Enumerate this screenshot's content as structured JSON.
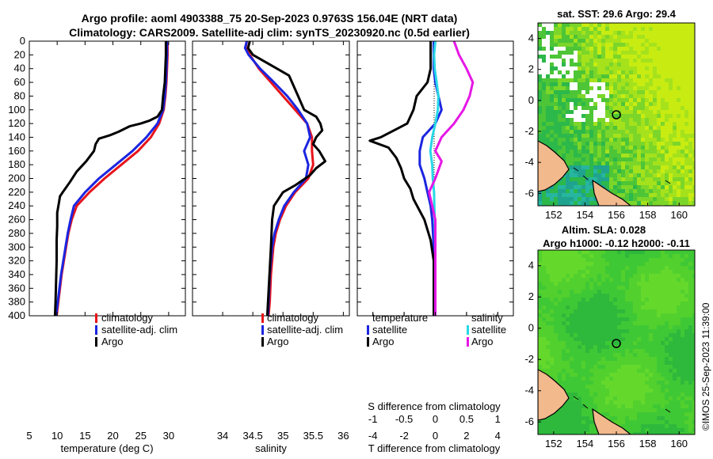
{
  "title": {
    "line1": "Argo profile: aoml 4903388_75 20-Sep-2023 0.9763S 156.04E (NRT data)",
    "line2": "Climatology: CARS2009. Satellite-adj clim: synTS_20230920.nc (0.5d earlier)"
  },
  "colors": {
    "climatology": "#e8141b",
    "satellite": "#1b25e0",
    "argo": "#000000",
    "sat_salinity": "#27d8e6",
    "argo_salinity": "#e617e6"
  },
  "chart_data": [
    {
      "type": "line",
      "id": "temperature",
      "xlabel": "temperature (deg C)",
      "ylabel": "depth",
      "xlim": [
        5,
        33
      ],
      "ylim": [
        400,
        0
      ],
      "xticks": [
        5,
        10,
        15,
        20,
        25,
        30
      ],
      "yticks": [
        0,
        20,
        40,
        60,
        80,
        100,
        120,
        140,
        160,
        180,
        200,
        220,
        240,
        260,
        280,
        300,
        320,
        340,
        360,
        380,
        400
      ],
      "legend": {
        "position": "lower-right",
        "entries": [
          "climatology",
          "satellite-adj. clim",
          "Argo"
        ]
      },
      "series": [
        {
          "name": "climatology",
          "key": "climatology",
          "points": [
            [
              29.8,
              0
            ],
            [
              29.8,
              20
            ],
            [
              29.7,
              40
            ],
            [
              29.6,
              60
            ],
            [
              29.4,
              80
            ],
            [
              29.1,
              100
            ],
            [
              28.3,
              120
            ],
            [
              26.8,
              140
            ],
            [
              24.5,
              160
            ],
            [
              21.5,
              180
            ],
            [
              18.5,
              200
            ],
            [
              15.8,
              220
            ],
            [
              13.5,
              240
            ],
            [
              12.6,
              260
            ],
            [
              12.0,
              280
            ],
            [
              11.6,
              300
            ],
            [
              11.2,
              320
            ],
            [
              10.8,
              340
            ],
            [
              10.5,
              360
            ],
            [
              10.2,
              380
            ],
            [
              9.9,
              400
            ]
          ]
        },
        {
          "name": "satellite-adj. clim",
          "key": "satellite",
          "points": [
            [
              29.7,
              0
            ],
            [
              29.7,
              20
            ],
            [
              29.6,
              40
            ],
            [
              29.5,
              60
            ],
            [
              29.3,
              80
            ],
            [
              29.0,
              100
            ],
            [
              28.0,
              120
            ],
            [
              26.0,
              140
            ],
            [
              23.5,
              160
            ],
            [
              20.5,
              180
            ],
            [
              17.5,
              200
            ],
            [
              15.0,
              220
            ],
            [
              13.0,
              240
            ],
            [
              12.4,
              260
            ],
            [
              11.9,
              280
            ],
            [
              11.5,
              300
            ],
            [
              11.1,
              320
            ],
            [
              10.7,
              340
            ],
            [
              10.4,
              360
            ],
            [
              10.1,
              380
            ],
            [
              9.8,
              400
            ]
          ]
        },
        {
          "name": "Argo",
          "key": "argo",
          "points": [
            [
              29.5,
              0
            ],
            [
              29.5,
              20
            ],
            [
              29.4,
              40
            ],
            [
              29.3,
              60
            ],
            [
              29.0,
              80
            ],
            [
              28.8,
              100
            ],
            [
              28.0,
              110
            ],
            [
              26.5,
              116
            ],
            [
              25.0,
              120
            ],
            [
              23.0,
              124
            ],
            [
              21.0,
              132
            ],
            [
              19.5,
              137
            ],
            [
              17.5,
              142
            ],
            [
              16.9,
              150
            ],
            [
              16.6,
              160
            ],
            [
              15.2,
              175
            ],
            [
              13.5,
              190
            ],
            [
              12.3,
              205
            ],
            [
              11.0,
              220
            ],
            [
              10.5,
              226
            ],
            [
              10.3,
              236
            ],
            [
              10.0,
              250
            ],
            [
              10.0,
              270
            ],
            [
              9.9,
              290
            ],
            [
              9.9,
              320
            ],
            [
              9.8,
              350
            ],
            [
              9.7,
              380
            ],
            [
              9.6,
              400
            ]
          ]
        }
      ]
    },
    {
      "type": "line",
      "id": "salinity",
      "xlabel": "salinity",
      "ylabel": "depth",
      "xlim": [
        33.5,
        36.1
      ],
      "ylim": [
        400,
        0
      ],
      "xticks": [
        34,
        34.5,
        35,
        35.5,
        36
      ],
      "legend": {
        "position": "lower-right",
        "entries": [
          "climatology",
          "satellite-adj. clim",
          "Argo"
        ]
      },
      "series": [
        {
          "name": "climatology",
          "key": "climatology",
          "points": [
            [
              34.4,
              0
            ],
            [
              34.38,
              10
            ],
            [
              34.45,
              20
            ],
            [
              34.6,
              40
            ],
            [
              34.8,
              60
            ],
            [
              35.0,
              80
            ],
            [
              35.2,
              100
            ],
            [
              35.4,
              120
            ],
            [
              35.48,
              140
            ],
            [
              35.48,
              160
            ],
            [
              35.5,
              180
            ],
            [
              35.42,
              200
            ],
            [
              35.2,
              220
            ],
            [
              35.05,
              240
            ],
            [
              34.95,
              260
            ],
            [
              34.88,
              280
            ],
            [
              34.84,
              300
            ],
            [
              34.8,
              340
            ],
            [
              34.78,
              380
            ],
            [
              34.76,
              400
            ]
          ]
        },
        {
          "name": "satellite-adj. clim",
          "key": "satellite",
          "points": [
            [
              34.4,
              0
            ],
            [
              34.37,
              10
            ],
            [
              34.43,
              20
            ],
            [
              34.62,
              40
            ],
            [
              34.85,
              60
            ],
            [
              35.07,
              80
            ],
            [
              35.25,
              100
            ],
            [
              35.4,
              120
            ],
            [
              35.45,
              140
            ],
            [
              35.35,
              160
            ],
            [
              35.42,
              180
            ],
            [
              35.38,
              200
            ],
            [
              35.18,
              220
            ],
            [
              35.02,
              240
            ],
            [
              34.93,
              260
            ],
            [
              34.86,
              280
            ],
            [
              34.82,
              300
            ],
            [
              34.78,
              340
            ],
            [
              34.76,
              380
            ],
            [
              34.75,
              400
            ]
          ]
        },
        {
          "name": "Argo",
          "key": "argo",
          "points": [
            [
              34.45,
              0
            ],
            [
              34.42,
              10
            ],
            [
              34.5,
              20
            ],
            [
              34.9,
              40
            ],
            [
              35.1,
              50
            ],
            [
              35.25,
              80
            ],
            [
              35.35,
              100
            ],
            [
              35.55,
              110
            ],
            [
              35.62,
              120
            ],
            [
              35.65,
              130
            ],
            [
              35.55,
              140
            ],
            [
              35.5,
              150
            ],
            [
              35.6,
              160
            ],
            [
              35.7,
              175
            ],
            [
              35.55,
              185
            ],
            [
              35.45,
              195
            ],
            [
              35.2,
              210
            ],
            [
              35.0,
              220
            ],
            [
              34.85,
              240
            ],
            [
              34.82,
              260
            ],
            [
              34.8,
              300
            ],
            [
              34.77,
              350
            ],
            [
              34.74,
              400
            ]
          ]
        }
      ]
    },
    {
      "type": "line",
      "id": "difference",
      "xlabel": "T difference from climatology",
      "x2label": "S difference from climatology",
      "ylabel": "depth",
      "xlim": [
        -5,
        5
      ],
      "ylim": [
        400,
        0
      ],
      "xticks": [
        -4,
        -2,
        0,
        2,
        4
      ],
      "x2lim": [
        -1.25,
        1.25
      ],
      "x2ticks": [
        -1,
        -0.5,
        0,
        0.5,
        1
      ],
      "legend_temperature": {
        "position": "right",
        "title": "temperature",
        "entries": [
          "satellite",
          "Argo"
        ]
      },
      "legend_salinity": {
        "position": "right",
        "title": "salinity",
        "entries": [
          "satellite",
          "Argo"
        ]
      },
      "series": [
        {
          "name": "satellite",
          "kind": "temperature",
          "key": "satellite",
          "points": [
            [
              -0.1,
              0
            ],
            [
              -0.1,
              20
            ],
            [
              -0.1,
              40
            ],
            [
              0.0,
              60
            ],
            [
              0.2,
              80
            ],
            [
              0.4,
              100
            ],
            [
              0.0,
              120
            ],
            [
              -0.8,
              140
            ],
            [
              -1.0,
              160
            ],
            [
              -1.0,
              180
            ],
            [
              -0.7,
              200
            ],
            [
              -0.5,
              220
            ],
            [
              -0.3,
              240
            ],
            [
              -0.2,
              260
            ],
            [
              -0.1,
              300
            ],
            [
              -0.1,
              350
            ],
            [
              -0.1,
              400
            ]
          ]
        },
        {
          "name": "Argo",
          "kind": "temperature",
          "key": "argo",
          "points": [
            [
              -0.3,
              0
            ],
            [
              -0.3,
              20
            ],
            [
              -0.3,
              40
            ],
            [
              -0.5,
              60
            ],
            [
              -1.2,
              80
            ],
            [
              -1.4,
              100
            ],
            [
              -1.8,
              120
            ],
            [
              -3.5,
              140
            ],
            [
              -4.2,
              145
            ],
            [
              -3.0,
              155
            ],
            [
              -2.5,
              170
            ],
            [
              -2.2,
              185
            ],
            [
              -2.0,
              200
            ],
            [
              -1.6,
              215
            ],
            [
              -1.4,
              230
            ],
            [
              -0.7,
              260
            ],
            [
              -0.3,
              290
            ],
            [
              -0.1,
              320
            ],
            [
              -0.1,
              360
            ],
            [
              -0.1,
              400
            ]
          ]
        },
        {
          "name": "satellite",
          "kind": "salinity",
          "key": "sat_salinity",
          "points": [
            [
              0.0,
              0
            ],
            [
              -0.02,
              20
            ],
            [
              -0.01,
              40
            ],
            [
              0.02,
              60
            ],
            [
              0.05,
              80
            ],
            [
              0.04,
              100
            ],
            [
              0.0,
              120
            ],
            [
              -0.05,
              140
            ],
            [
              -0.08,
              160
            ],
            [
              -0.05,
              180
            ],
            [
              -0.04,
              200
            ],
            [
              -0.02,
              220
            ],
            [
              -0.01,
              260
            ],
            [
              0.0,
              300
            ],
            [
              0.0,
              400
            ]
          ]
        },
        {
          "name": "Argo",
          "kind": "salinity",
          "key": "argo_salinity",
          "points": [
            [
              0.3,
              0
            ],
            [
              0.38,
              20
            ],
            [
              0.5,
              40
            ],
            [
              0.6,
              60
            ],
            [
              0.55,
              80
            ],
            [
              0.45,
              100
            ],
            [
              0.3,
              120
            ],
            [
              0.1,
              140
            ],
            [
              0.0,
              160
            ],
            [
              0.1,
              175
            ],
            [
              0.0,
              200
            ],
            [
              -0.1,
              220
            ],
            [
              -0.05,
              240
            ],
            [
              0.0,
              260
            ],
            [
              0.0,
              300
            ],
            [
              0.0,
              400
            ]
          ]
        }
      ]
    },
    {
      "type": "heatmap",
      "id": "sst_map",
      "title": "sat. SST: 29.6 Argo: 29.4",
      "xlim": [
        151,
        161
      ],
      "ylim": [
        -6.8,
        5
      ],
      "xticks": [
        152,
        154,
        156,
        158,
        160
      ],
      "yticks": [
        -6,
        -4,
        -2,
        0,
        2,
        4
      ],
      "marker": [
        156.04,
        -0.9763
      ]
    },
    {
      "type": "heatmap",
      "id": "sla_map",
      "title": "Altim. SLA: 0.028",
      "subtitle": "Argo h1000: -0.12 h2000: -0.11",
      "xlim": [
        151,
        161
      ],
      "ylim": [
        -6.8,
        5
      ],
      "xticks": [
        152,
        154,
        156,
        158,
        160
      ],
      "yticks": [
        -6,
        -4,
        -2,
        0,
        2,
        4
      ],
      "marker": [
        156.04,
        -0.9763
      ]
    }
  ],
  "stamp": "©IMOS 25-Sep-2023 11:39:00"
}
